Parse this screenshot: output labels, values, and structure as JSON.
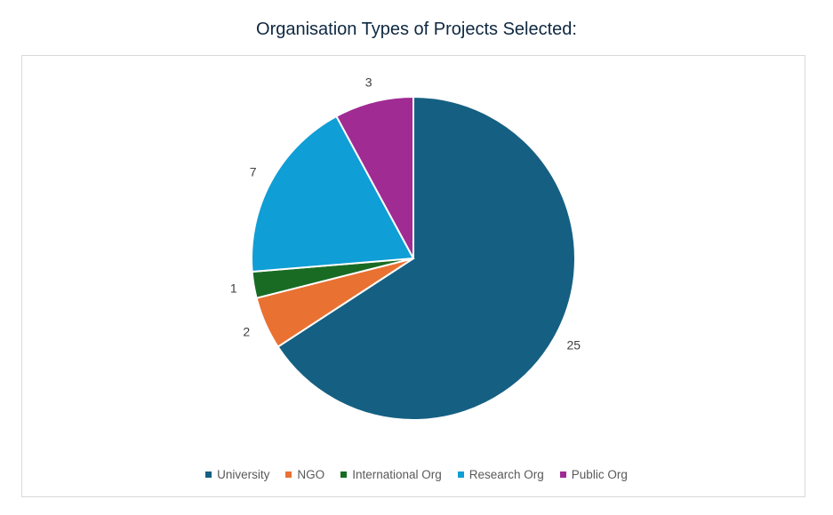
{
  "chart_data": {
    "type": "pie",
    "title": "Organisation Types of Projects Selected:",
    "categories": [
      "University",
      "NGO",
      "International Org",
      "Research Org",
      "Public Org"
    ],
    "values": [
      25,
      2,
      1,
      7,
      3
    ],
    "colors": [
      "#156082",
      "#e97132",
      "#196b24",
      "#0f9ed5",
      "#a02b93"
    ],
    "start_angle": "top",
    "direction": "clockwise",
    "data_labels": true,
    "legend_position": "bottom"
  }
}
